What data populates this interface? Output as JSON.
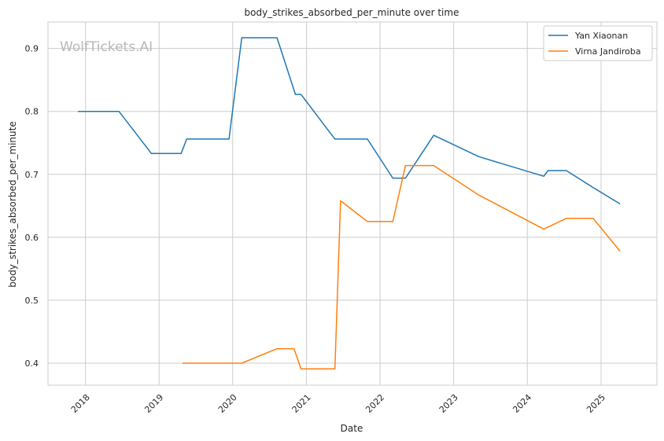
{
  "chart_data": {
    "type": "line",
    "title": "body_strikes_absorbed_per_minute over time",
    "xlabel": "Date",
    "ylabel": "body_strikes_absorbed_per_minute",
    "watermark": "WolfTickets.AI",
    "x_ticks": [
      "2018",
      "2019",
      "2020",
      "2021",
      "2022",
      "2023",
      "2024",
      "2025"
    ],
    "y_ticks": [
      "0.4",
      "0.5",
      "0.6",
      "0.7",
      "0.8",
      "0.9"
    ],
    "xlim": [
      "2017-06-29",
      "2025-10-05"
    ],
    "ylim": [
      0.365,
      0.942
    ],
    "grid": true,
    "legend_position": "top-right",
    "series": [
      {
        "name": "Yan Xiaonan",
        "color": "#1f77b4",
        "points": [
          [
            "2017-11-25",
            0.8
          ],
          [
            "2018-06-16",
            0.8
          ],
          [
            "2018-11-24",
            0.733
          ],
          [
            "2019-04-20",
            0.733
          ],
          [
            "2019-05-18",
            0.756
          ],
          [
            "2019-12-14",
            0.756
          ],
          [
            "2020-02-15",
            0.917
          ],
          [
            "2020-08-08",
            0.917
          ],
          [
            "2020-11-07",
            0.827
          ],
          [
            "2020-12-05",
            0.827
          ],
          [
            "2021-05-22",
            0.756
          ],
          [
            "2021-10-30",
            0.756
          ],
          [
            "2022-03-05",
            0.694
          ],
          [
            "2022-05-07",
            0.694
          ],
          [
            "2022-09-24",
            0.762
          ],
          [
            "2023-05-06",
            0.728
          ],
          [
            "2024-03-23",
            0.697
          ],
          [
            "2024-04-13",
            0.706
          ],
          [
            "2024-07-13",
            0.706
          ],
          [
            "2024-11-23",
            0.679
          ],
          [
            "2025-04-05",
            0.653
          ]
        ]
      },
      {
        "name": "Virna Jandiroba",
        "color": "#ff7f0e",
        "points": [
          [
            "2019-04-27",
            0.4
          ],
          [
            "2020-02-15",
            0.4
          ],
          [
            "2020-08-08",
            0.423
          ],
          [
            "2020-10-31",
            0.423
          ],
          [
            "2020-12-05",
            0.391
          ],
          [
            "2021-05-22",
            0.391
          ],
          [
            "2021-06-19",
            0.658
          ],
          [
            "2021-10-30",
            0.625
          ],
          [
            "2022-03-05",
            0.625
          ],
          [
            "2022-05-07",
            0.714
          ],
          [
            "2022-09-24",
            0.714
          ],
          [
            "2023-05-06",
            0.667
          ],
          [
            "2024-03-23",
            0.613
          ],
          [
            "2024-07-13",
            0.63
          ],
          [
            "2024-11-23",
            0.63
          ],
          [
            "2025-04-05",
            0.578
          ]
        ]
      }
    ]
  }
}
